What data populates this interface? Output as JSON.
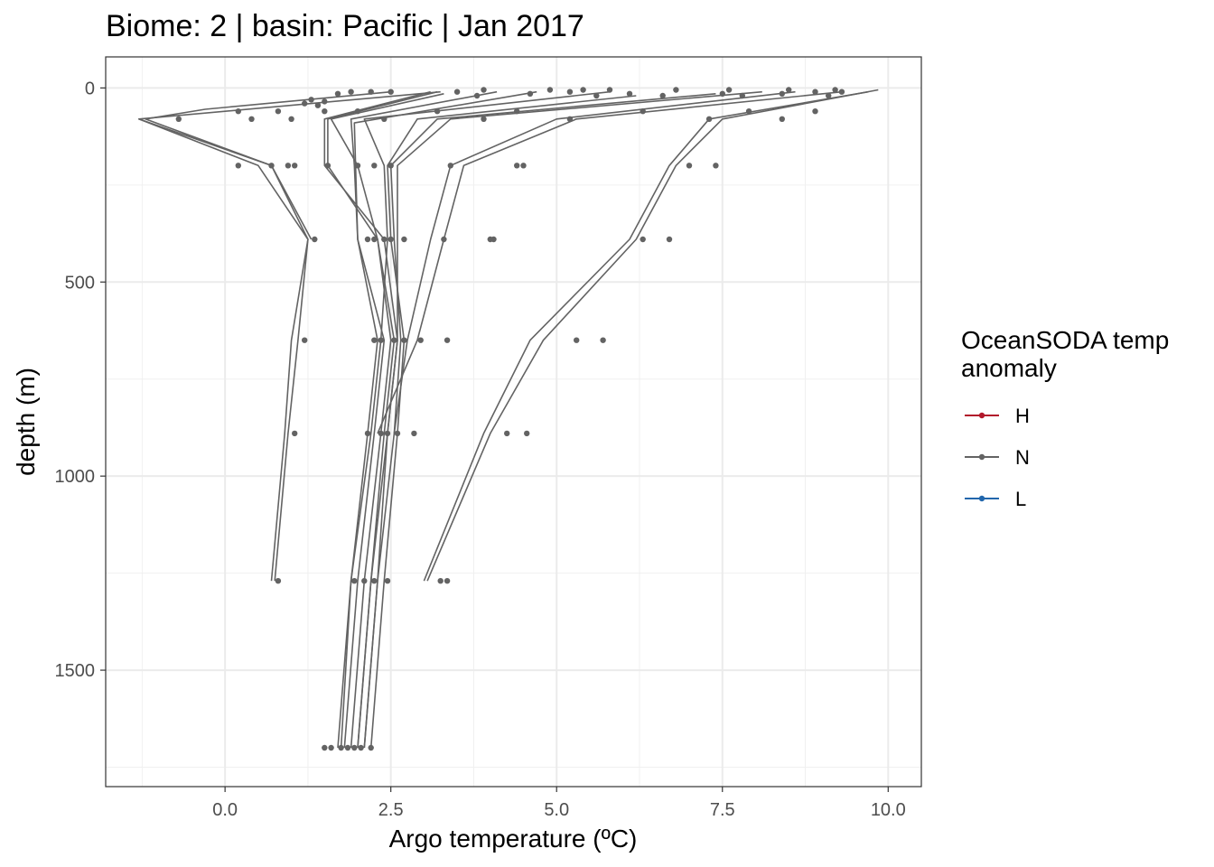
{
  "chart_data": {
    "type": "line",
    "title": "Biome: 2 | basin: Pacific  | Jan 2017",
    "xlabel": "Argo temperature (ºC)",
    "ylabel": "depth (m)",
    "xlim": [
      -1.8,
      10.5
    ],
    "ylim": [
      1800,
      -80
    ],
    "y_reversed": true,
    "x_ticks": [
      0.0,
      2.5,
      5.0,
      7.5,
      10.0
    ],
    "x_tick_labels": [
      "0.0",
      "2.5",
      "5.0",
      "7.5",
      "10.0"
    ],
    "y_ticks": [
      0,
      500,
      1000,
      1500
    ],
    "y_tick_labels": [
      "0",
      "500",
      "1000",
      "1500"
    ],
    "grid": true,
    "legend": {
      "title_lines": [
        "OceanSODA temp",
        "anomaly"
      ],
      "placement": "right",
      "entries": [
        {
          "label": "H",
          "color": "#b2182b"
        },
        {
          "label": "N",
          "color": "#636363"
        },
        {
          "label": "L",
          "color": "#2166ac"
        }
      ]
    },
    "series_color": "#636363",
    "series": [
      {
        "points": [
          [
            -1.3,
            80
          ],
          [
            0.5,
            200
          ],
          [
            1.25,
            390
          ],
          [
            1.0,
            650
          ],
          [
            0.9,
            890
          ],
          [
            0.7,
            1270
          ]
        ]
      },
      {
        "points": [
          [
            3.25,
            10
          ],
          [
            -1.3,
            80
          ],
          [
            0.7,
            200
          ],
          [
            1.25,
            390
          ],
          [
            1.1,
            650
          ],
          [
            0.95,
            890
          ],
          [
            0.75,
            1270
          ]
        ]
      },
      {
        "points": [
          [
            2.5,
            10
          ],
          [
            -0.3,
            55
          ],
          [
            -1.2,
            80
          ],
          [
            0.7,
            200
          ],
          [
            1.3,
            390
          ]
        ]
      },
      {
        "points": [
          [
            3.1,
            10
          ],
          [
            1.5,
            80
          ],
          [
            1.5,
            200
          ],
          [
            2.4,
            390
          ],
          [
            2.6,
            650
          ],
          [
            2.45,
            890
          ],
          [
            2.3,
            1270
          ],
          [
            2.1,
            1700
          ]
        ]
      },
      {
        "points": [
          [
            3.2,
            10
          ],
          [
            1.55,
            80
          ],
          [
            1.55,
            200
          ],
          [
            2.3,
            390
          ],
          [
            2.55,
            650
          ],
          [
            2.4,
            890
          ],
          [
            2.2,
            1270
          ],
          [
            2.0,
            1700
          ]
        ]
      },
      {
        "points": [
          [
            3.3,
            15
          ],
          [
            1.6,
            80
          ],
          [
            2.0,
            200
          ],
          [
            2.3,
            390
          ],
          [
            2.5,
            650
          ],
          [
            2.35,
            890
          ],
          [
            2.1,
            1270
          ],
          [
            1.9,
            1700
          ]
        ]
      },
      {
        "points": [
          [
            4.1,
            10
          ],
          [
            1.9,
            80
          ],
          [
            1.95,
            200
          ],
          [
            2.0,
            390
          ],
          [
            2.4,
            650
          ],
          [
            2.25,
            890
          ],
          [
            2.0,
            1270
          ],
          [
            1.8,
            1700
          ]
        ]
      },
      {
        "points": [
          [
            4.7,
            10
          ],
          [
            1.95,
            90
          ],
          [
            2.0,
            390
          ],
          [
            2.3,
            650
          ],
          [
            2.15,
            890
          ],
          [
            1.9,
            1270
          ],
          [
            1.7,
            1700
          ]
        ]
      },
      {
        "points": [
          [
            5.8,
            10
          ],
          [
            2.1,
            80
          ],
          [
            2.4,
            200
          ],
          [
            2.45,
            390
          ],
          [
            2.35,
            650
          ],
          [
            2.2,
            890
          ],
          [
            1.9,
            1270
          ],
          [
            1.75,
            1700
          ]
        ]
      },
      {
        "points": [
          [
            6.2,
            20
          ],
          [
            2.9,
            80
          ],
          [
            2.45,
            200
          ],
          [
            2.5,
            390
          ],
          [
            2.7,
            650
          ],
          [
            2.6,
            890
          ],
          [
            2.4,
            1270
          ],
          [
            2.2,
            1700
          ]
        ]
      },
      {
        "points": [
          [
            7.4,
            15
          ],
          [
            3.2,
            80
          ],
          [
            2.5,
            200
          ],
          [
            2.55,
            390
          ],
          [
            2.65,
            650
          ],
          [
            2.55,
            890
          ],
          [
            2.3,
            1270
          ],
          [
            2.1,
            1700
          ]
        ]
      },
      {
        "points": [
          [
            8.1,
            10
          ],
          [
            3.4,
            80
          ],
          [
            2.6,
            200
          ],
          [
            2.6,
            390
          ],
          [
            2.6,
            650
          ],
          [
            2.45,
            890
          ],
          [
            2.2,
            1270
          ],
          [
            2.0,
            1700
          ]
        ]
      },
      {
        "points": [
          [
            9.3,
            10
          ],
          [
            5.3,
            80
          ],
          [
            3.6,
            200
          ],
          [
            3.3,
            390
          ],
          [
            2.9,
            650
          ],
          [
            2.3,
            890
          ]
        ]
      },
      {
        "points": [
          [
            8.6,
            10
          ],
          [
            5.0,
            80
          ],
          [
            3.4,
            200
          ],
          [
            3.1,
            390
          ],
          [
            2.75,
            650
          ],
          [
            2.55,
            890
          ]
        ]
      },
      {
        "points": [
          [
            9.7,
            10
          ],
          [
            7.3,
            80
          ],
          [
            6.7,
            200
          ],
          [
            6.1,
            390
          ],
          [
            4.6,
            650
          ],
          [
            3.9,
            890
          ],
          [
            3.0,
            1270
          ]
        ]
      },
      {
        "points": [
          [
            9.85,
            5
          ],
          [
            7.5,
            80
          ],
          [
            6.8,
            200
          ],
          [
            6.2,
            390
          ],
          [
            4.8,
            650
          ],
          [
            4.0,
            890
          ],
          [
            3.05,
            1270
          ]
        ]
      }
    ],
    "points": [
      [
        1.3,
        30
      ],
      [
        1.5,
        35
      ],
      [
        1.7,
        15
      ],
      [
        1.9,
        10
      ],
      [
        2.2,
        10
      ],
      [
        2.5,
        10
      ],
      [
        1.2,
        40
      ],
      [
        1.4,
        45
      ],
      [
        3.5,
        10
      ],
      [
        3.8,
        20
      ],
      [
        3.9,
        5
      ],
      [
        4.6,
        15
      ],
      [
        4.9,
        5
      ],
      [
        5.2,
        10
      ],
      [
        5.4,
        5
      ],
      [
        5.6,
        20
      ],
      [
        5.8,
        5
      ],
      [
        6.1,
        15
      ],
      [
        6.6,
        20
      ],
      [
        6.8,
        5
      ],
      [
        7.5,
        15
      ],
      [
        7.6,
        5
      ],
      [
        7.8,
        20
      ],
      [
        8.4,
        15
      ],
      [
        8.5,
        5
      ],
      [
        8.9,
        10
      ],
      [
        9.1,
        20
      ],
      [
        9.2,
        5
      ],
      [
        9.3,
        10
      ],
      [
        -0.7,
        80
      ],
      [
        0.2,
        60
      ],
      [
        0.4,
        80
      ],
      [
        0.8,
        60
      ],
      [
        1.0,
        80
      ],
      [
        1.5,
        60
      ],
      [
        2.0,
        60
      ],
      [
        2.4,
        80
      ],
      [
        3.2,
        60
      ],
      [
        3.9,
        80
      ],
      [
        4.4,
        60
      ],
      [
        5.2,
        80
      ],
      [
        6.3,
        60
      ],
      [
        7.3,
        80
      ],
      [
        7.9,
        60
      ],
      [
        8.4,
        80
      ],
      [
        8.9,
        60
      ],
      [
        0.2,
        200
      ],
      [
        0.7,
        200
      ],
      [
        0.95,
        200
      ],
      [
        1.05,
        200
      ],
      [
        1.55,
        200
      ],
      [
        2.0,
        200
      ],
      [
        2.25,
        200
      ],
      [
        2.5,
        200
      ],
      [
        3.4,
        200
      ],
      [
        4.4,
        200
      ],
      [
        4.5,
        200
      ],
      [
        7.0,
        200
      ],
      [
        7.4,
        200
      ],
      [
        1.35,
        390
      ],
      [
        2.15,
        390
      ],
      [
        2.25,
        390
      ],
      [
        2.4,
        390
      ],
      [
        2.5,
        390
      ],
      [
        2.7,
        390
      ],
      [
        3.3,
        390
      ],
      [
        4.0,
        390
      ],
      [
        4.05,
        390
      ],
      [
        6.3,
        390
      ],
      [
        6.7,
        390
      ],
      [
        1.2,
        650
      ],
      [
        2.25,
        650
      ],
      [
        2.35,
        650
      ],
      [
        2.55,
        650
      ],
      [
        2.7,
        650
      ],
      [
        2.95,
        650
      ],
      [
        3.35,
        650
      ],
      [
        5.3,
        650
      ],
      [
        5.7,
        650
      ],
      [
        1.05,
        890
      ],
      [
        2.15,
        890
      ],
      [
        2.35,
        890
      ],
      [
        2.45,
        890
      ],
      [
        2.6,
        890
      ],
      [
        2.85,
        890
      ],
      [
        4.25,
        890
      ],
      [
        4.55,
        890
      ],
      [
        0.8,
        1270
      ],
      [
        1.95,
        1270
      ],
      [
        2.1,
        1270
      ],
      [
        2.25,
        1270
      ],
      [
        2.45,
        1270
      ],
      [
        3.25,
        1270
      ],
      [
        3.35,
        1270
      ],
      [
        1.5,
        1700
      ],
      [
        1.6,
        1700
      ],
      [
        1.75,
        1700
      ],
      [
        1.85,
        1700
      ],
      [
        1.95,
        1700
      ],
      [
        2.05,
        1700
      ],
      [
        2.2,
        1700
      ]
    ]
  }
}
